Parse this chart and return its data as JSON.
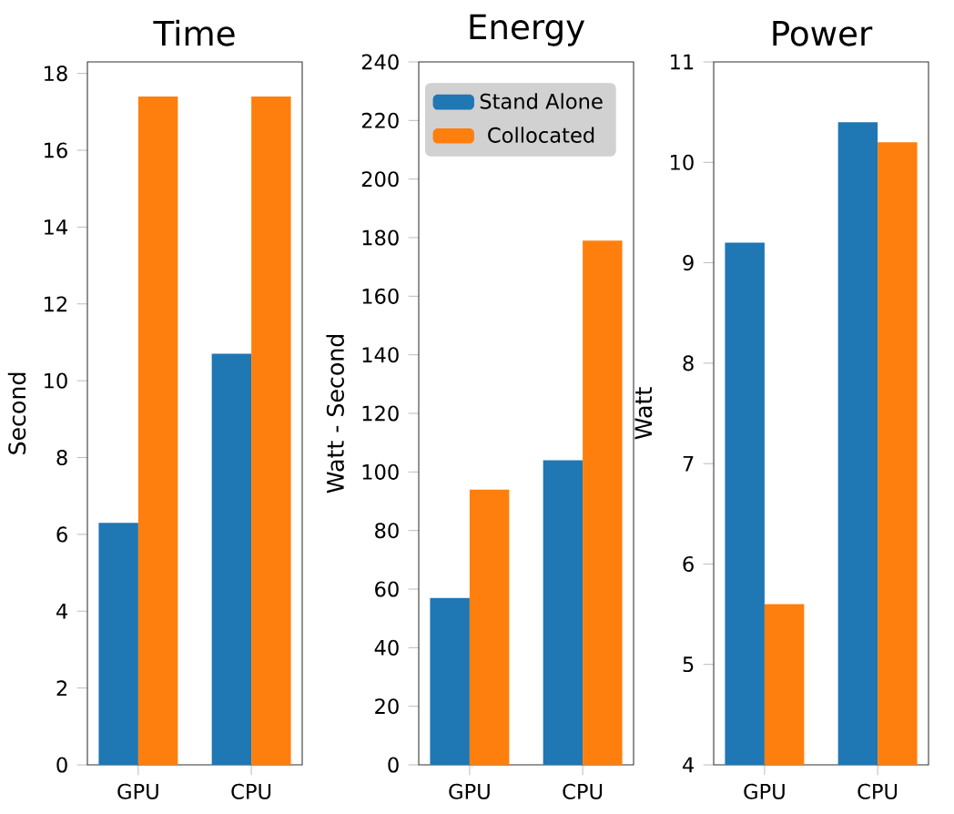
{
  "chart_data": [
    {
      "type": "bar",
      "title": "Time",
      "ylabel": "Second",
      "categories": [
        "GPU",
        "CPU"
      ],
      "series": [
        {
          "color": "#1f77b4",
          "values": [
            6.3,
            10.7
          ]
        },
        {
          "color": "#ff7f0e",
          "values": [
            17.4,
            17.4
          ]
        }
      ],
      "ylim": [
        0,
        18.3
      ],
      "yticks": [
        0,
        2,
        4,
        6,
        8,
        10,
        12,
        14,
        16,
        18
      ]
    },
    {
      "type": "bar",
      "title": "Energy",
      "ylabel": "Watt - Second",
      "categories": [
        "GPU",
        "CPU"
      ],
      "series": [
        {
          "name": "Stand Alone",
          "color": "#1f77b4",
          "values": [
            57,
            104
          ]
        },
        {
          "name": "Collocated",
          "color": "#ff7f0e",
          "values": [
            94,
            179
          ]
        }
      ],
      "ylim": [
        0,
        240
      ],
      "yticks": [
        0,
        20,
        40,
        60,
        80,
        100,
        120,
        140,
        160,
        180,
        200,
        220,
        240
      ],
      "legend": "top left"
    },
    {
      "type": "bar",
      "title": "Power",
      "ylabel": "Watt",
      "categories": [
        "GPU",
        "CPU"
      ],
      "series": [
        {
          "color": "#1f77b4",
          "values": [
            9.2,
            10.4
          ]
        },
        {
          "color": "#ff7f0e",
          "values": [
            5.6,
            10.2
          ]
        }
      ],
      "ylim": [
        4,
        11
      ],
      "yticks": [
        4,
        5,
        6,
        7,
        8,
        9,
        10,
        11
      ]
    }
  ]
}
